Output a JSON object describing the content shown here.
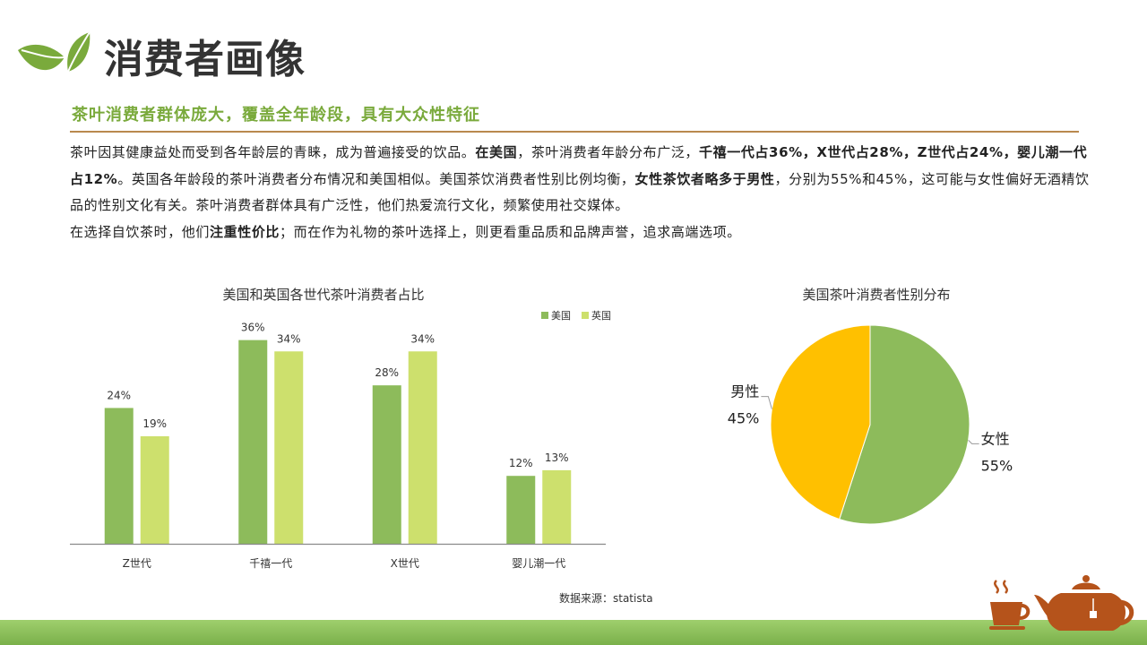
{
  "header": {
    "title": "消费者画像",
    "subtitle": "茶叶消费者群体庞大，覆盖全年龄段，具有大众性特征"
  },
  "body": {
    "p1": "茶叶因其健康益处而受到各年龄层的青睐，成为普遍接受的饮品。",
    "p1_b1": "在美国",
    "p2": "，茶叶消费者年龄分布广泛，",
    "p2_b1": "千禧一代占36%，X世代占28%，Z世代占24%，婴儿潮一代占12%",
    "p3": "。英国各年龄段的茶叶消费者分布情况和美国相似。美国茶饮消费者性别比例均衡，",
    "p3_b1": "女性茶饮者略多于男性",
    "p4": "，分别为55%和45%，这可能与女性偏好无酒精饮品的性别文化有关。茶叶消费者群体具有广泛性，他们热爱流行文化，频繁使用社交媒体。",
    "p5": "在选择自饮茶时，他们",
    "p5_b1": "注重性价比",
    "p6": "；而在作为礼物的茶叶选择上，则更看重品质和品牌声誉，追求高端选项。"
  },
  "source": "数据来源：statista",
  "colors": {
    "us": "#8dbb5b",
    "uk": "#cde06d",
    "female": "#8dbb5b",
    "male": "#ffc000",
    "accent": "#7aaa3c",
    "rule": "#b9894e",
    "teapot": "#b5531b"
  },
  "chart_data": [
    {
      "type": "bar",
      "title": "美国和英国各世代茶叶消费者占比",
      "categories": [
        "Z世代",
        "千禧一代",
        "X世代",
        "婴儿潮一代"
      ],
      "series": [
        {
          "name": "美国",
          "values": [
            24,
            36,
            28,
            12
          ],
          "labels": [
            "24%",
            "36%",
            "28%",
            "12%"
          ]
        },
        {
          "name": "英国",
          "values": [
            19,
            34,
            34,
            13
          ],
          "labels": [
            "19%",
            "34%",
            "34%",
            "13%"
          ]
        }
      ],
      "ylim": [
        0,
        38
      ],
      "grid": false,
      "legend": "top-right"
    },
    {
      "type": "pie",
      "title": "美国茶叶消费者性别分布",
      "slices": [
        {
          "name": "女性",
          "value": 55,
          "label": "55%"
        },
        {
          "name": "男性",
          "value": 45,
          "label": "45%"
        }
      ]
    }
  ]
}
